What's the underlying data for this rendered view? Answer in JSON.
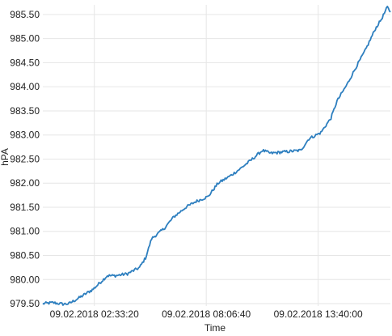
{
  "chart_data": {
    "type": "line",
    "title": "",
    "xlabel": "Time",
    "ylabel": "hPA",
    "x_range_hours": [
      0,
      17.25
    ],
    "ylim": [
      979.45,
      985.7
    ],
    "grid": true,
    "legend": "none",
    "y_ticks": [
      979.5,
      980.0,
      980.5,
      981.0,
      981.5,
      982.0,
      982.5,
      983.0,
      983.5,
      984.0,
      984.5,
      985.0,
      985.5
    ],
    "y_tick_labels": [
      "979.50",
      "980.00",
      "980.50",
      "981.00",
      "981.50",
      "982.00",
      "982.50",
      "983.00",
      "983.50",
      "984.00",
      "984.50",
      "985.00",
      "985.50"
    ],
    "x_ticks": [
      {
        "hour": 2.5556,
        "label": "09.02.2018 02:33:20"
      },
      {
        "hour": 8.1111,
        "label": "09.02.2018 08:06:40"
      },
      {
        "hour": 13.6667,
        "label": "09.02.2018 13:40:00"
      }
    ],
    "series": [
      {
        "color": "#2e7fbf",
        "points": [
          [
            0.0,
            979.5
          ],
          [
            0.5,
            979.52
          ],
          [
            1.0,
            979.49
          ],
          [
            1.3,
            979.5
          ],
          [
            1.8,
            979.62
          ],
          [
            2.5,
            979.8
          ],
          [
            3.2,
            980.08
          ],
          [
            3.6,
            980.08
          ],
          [
            4.2,
            980.12
          ],
          [
            4.8,
            980.25
          ],
          [
            5.1,
            980.45
          ],
          [
            5.4,
            980.85
          ],
          [
            6.0,
            981.05
          ],
          [
            6.5,
            981.3
          ],
          [
            7.1,
            981.5
          ],
          [
            7.6,
            981.62
          ],
          [
            8.2,
            981.72
          ],
          [
            8.7,
            982.0
          ],
          [
            9.3,
            982.15
          ],
          [
            9.8,
            982.3
          ],
          [
            10.4,
            982.5
          ],
          [
            10.9,
            982.68
          ],
          [
            11.3,
            982.62
          ],
          [
            12.0,
            982.65
          ],
          [
            12.8,
            982.68
          ],
          [
            13.2,
            982.92
          ],
          [
            13.8,
            983.05
          ],
          [
            14.3,
            983.35
          ],
          [
            14.6,
            983.7
          ],
          [
            15.1,
            984.05
          ],
          [
            15.6,
            984.45
          ],
          [
            16.0,
            984.75
          ],
          [
            16.5,
            985.2
          ],
          [
            16.8,
            985.4
          ],
          [
            17.1,
            985.65
          ],
          [
            17.25,
            985.55
          ]
        ]
      }
    ]
  }
}
